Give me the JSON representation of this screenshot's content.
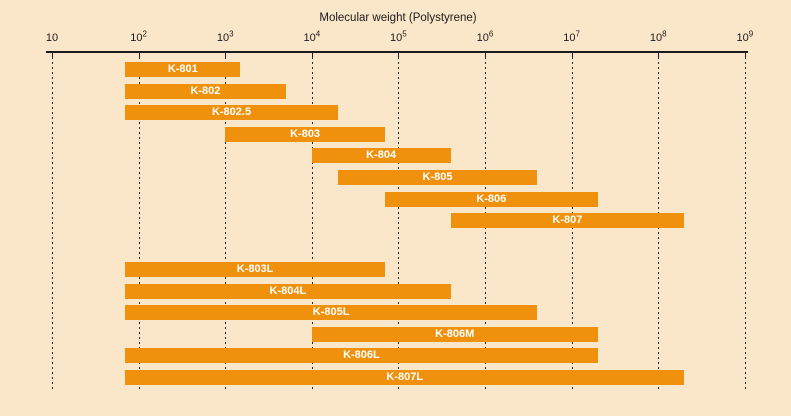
{
  "title": "Molecular weight (Polystyrene)",
  "colors": {
    "background": "#FAE6C8",
    "bar": "#EF910D",
    "bar_label": "#FFFFFF",
    "axis": "#1B1B1B",
    "grid": "#2A2A2A"
  },
  "chart_data": {
    "type": "bar",
    "orientation": "horizontal-range",
    "title": "Molecular weight (Polystyrene)",
    "x_axis": {
      "label": "Molecular weight (Polystyrene)",
      "scale": "log10",
      "min": 10,
      "max": 1000000000,
      "tick_exponents": [
        1,
        2,
        3,
        4,
        5,
        6,
        7,
        8,
        9
      ],
      "grid": "dashed-vertical"
    },
    "legend": "none",
    "series": [
      {
        "name": "K-801",
        "group": 1,
        "mw_min": 70,
        "mw_max": 1500
      },
      {
        "name": "K-802",
        "group": 1,
        "mw_min": 70,
        "mw_max": 5000
      },
      {
        "name": "K-802.5",
        "group": 1,
        "mw_min": 70,
        "mw_max": 20000
      },
      {
        "name": "K-803",
        "group": 1,
        "mw_min": 1000,
        "mw_max": 70000
      },
      {
        "name": "K-804",
        "group": 1,
        "mw_min": 10000,
        "mw_max": 400000
      },
      {
        "name": "K-805",
        "group": 1,
        "mw_min": 20000,
        "mw_max": 4000000
      },
      {
        "name": "K-806",
        "group": 1,
        "mw_min": 70000,
        "mw_max": 20000000
      },
      {
        "name": "K-807",
        "group": 1,
        "mw_min": 400000,
        "mw_max": 200000000
      },
      {
        "name": "K-803L",
        "group": 2,
        "mw_min": 70,
        "mw_max": 70000
      },
      {
        "name": "K-804L",
        "group": 2,
        "mw_min": 70,
        "mw_max": 400000
      },
      {
        "name": "K-805L",
        "group": 2,
        "mw_min": 70,
        "mw_max": 4000000
      },
      {
        "name": "K-806M",
        "group": 2,
        "mw_min": 10000,
        "mw_max": 20000000
      },
      {
        "name": "K-806L",
        "group": 2,
        "mw_min": 70,
        "mw_max": 20000000
      },
      {
        "name": "K-807L",
        "group": 2,
        "mw_min": 70,
        "mw_max": 200000000
      }
    ]
  }
}
